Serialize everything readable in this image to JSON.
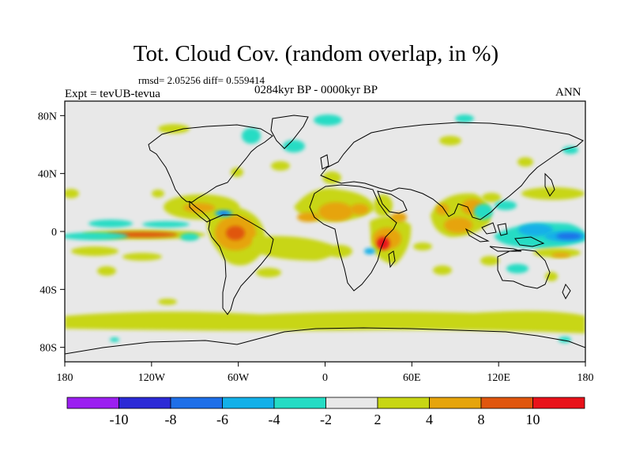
{
  "title": "Tot. Cloud Cov. (random overlap, in %)",
  "stats": "rmsd= 2.05256 diff= 0.559414",
  "experiment": "Expt = tevUB-tevua",
  "period": "0284kyr BP - 0000kyr BP",
  "season": "ANN",
  "lat_ticks": [
    {
      "value": 80,
      "label": "80N"
    },
    {
      "value": 40,
      "label": "40N"
    },
    {
      "value": 0,
      "label": "0"
    },
    {
      "value": -40,
      "label": "40S"
    },
    {
      "value": -80,
      "label": "80S"
    }
  ],
  "lon_ticks": [
    {
      "value": -180,
      "label": "180"
    },
    {
      "value": -120,
      "label": "120W"
    },
    {
      "value": -60,
      "label": "60W"
    },
    {
      "value": 0,
      "label": "0"
    },
    {
      "value": 60,
      "label": "60E"
    },
    {
      "value": 120,
      "label": "120E"
    },
    {
      "value": 180,
      "label": "180"
    }
  ],
  "colorbar": {
    "colors": [
      "#9b1ff0",
      "#2c2ad6",
      "#1e6fe8",
      "#13b0e8",
      "#25dcc4",
      "#e8e8e8",
      "#c8d614",
      "#e6a40c",
      "#e0560e",
      "#e8121a"
    ],
    "labels": [
      "-10",
      "-8",
      "-6",
      "-4",
      "-2",
      "2",
      "4",
      "8",
      "10"
    ]
  },
  "anomaly_regions": [
    {
      "name": "amazon",
      "lon": -60,
      "lat": 0,
      "value": 9
    },
    {
      "name": "caribbean",
      "lon": -75,
      "lat": 15,
      "value": 5
    },
    {
      "name": "east-pacific-itcz",
      "lon": -125,
      "lat": 2,
      "value": 9
    },
    {
      "name": "east-africa",
      "lon": 40,
      "lat": -5,
      "value": 10
    },
    {
      "name": "sahel-arabia",
      "lon": 20,
      "lat": 15,
      "value": 5
    },
    {
      "name": "south-asia",
      "lon": 90,
      "lat": 18,
      "value": 5
    },
    {
      "name": "west-pacific",
      "lon": 160,
      "lat": -2,
      "value": -8
    },
    {
      "name": "north-atlantic",
      "lon": -10,
      "lat": 75,
      "value": -3
    },
    {
      "name": "southern-ocean",
      "lon": 90,
      "lat": -60,
      "value": 2.5
    }
  ]
}
